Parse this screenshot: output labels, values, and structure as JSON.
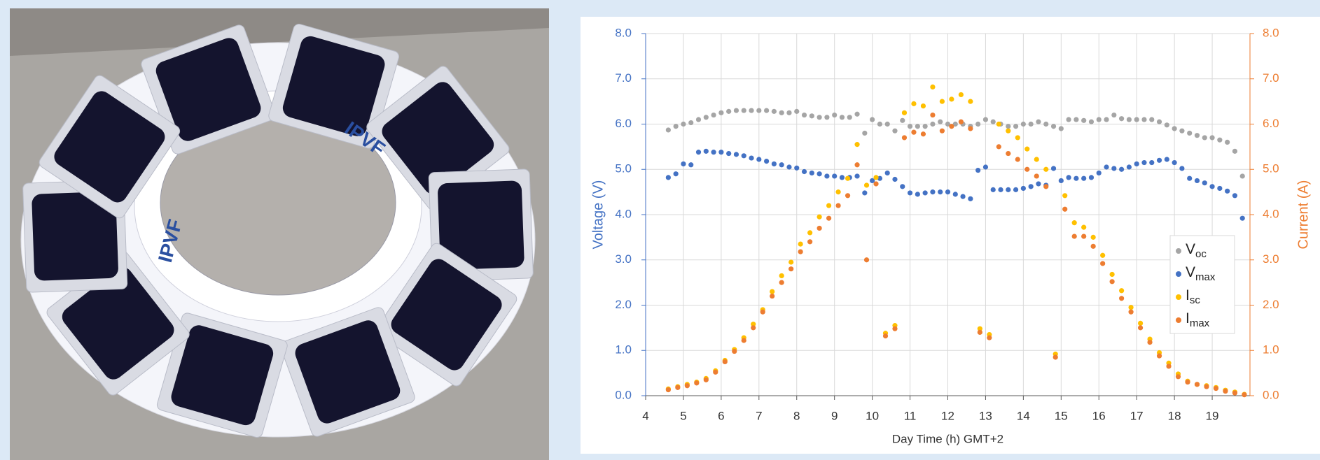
{
  "photo": {
    "labels": [
      "IPVF",
      "IPVF"
    ]
  },
  "chart_data": {
    "type": "scatter",
    "x_label": "Day Time (h) GMT+2",
    "y_label": "Voltage (V)",
    "y2_label": "Current (A)",
    "xlim": [
      4,
      20
    ],
    "xticks": [
      4,
      5,
      6,
      7,
      8,
      9,
      10,
      11,
      12,
      13,
      14,
      15,
      16,
      17,
      18,
      19
    ],
    "ylim": [
      0,
      8
    ],
    "yticks": [
      {
        "value": 0,
        "label": "0.0"
      },
      {
        "value": 1,
        "label": "1.0"
      },
      {
        "value": 2,
        "label": "2.0"
      },
      {
        "value": 3,
        "label": "3.0"
      },
      {
        "value": 4,
        "label": "4.0"
      },
      {
        "value": 5,
        "label": "5.0"
      },
      {
        "value": 6,
        "label": "6.0"
      },
      {
        "value": 7,
        "label": "7.0"
      },
      {
        "value": 8,
        "label": "8.0"
      }
    ],
    "y2lim": [
      0,
      8
    ],
    "y2ticks": [
      {
        "value": 0,
        "label": "0.0"
      },
      {
        "value": 1,
        "label": "1.0"
      },
      {
        "value": 2,
        "label": "2.0"
      },
      {
        "value": 3,
        "label": "3.0"
      },
      {
        "value": 4,
        "label": "4.0"
      },
      {
        "value": 5,
        "label": "5.0"
      },
      {
        "value": 6,
        "label": "6.0"
      },
      {
        "value": 7,
        "label": "7.0"
      },
      {
        "value": 8,
        "label": "8.0"
      }
    ],
    "y_color": "#4472c4",
    "y2_color": "#ed7d31",
    "grid": true,
    "legend": "right",
    "series": [
      {
        "name": "Voc",
        "color": "#a5a5a5",
        "x": [
          4.6,
          4.8,
          5.0,
          5.2,
          5.4,
          5.6,
          5.8,
          6.0,
          6.2,
          6.4,
          6.6,
          6.8,
          7.0,
          7.2,
          7.4,
          7.6,
          7.8,
          8.0,
          8.2,
          8.4,
          8.6,
          8.8,
          9.0,
          9.2,
          9.4,
          9.6,
          9.8,
          10.0,
          10.2,
          10.4,
          10.6,
          10.8,
          11.0,
          11.2,
          11.4,
          11.6,
          11.8,
          12.0,
          12.2,
          12.4,
          12.6,
          12.8,
          13.0,
          13.2,
          13.4,
          13.6,
          13.8,
          14.0,
          14.2,
          14.4,
          14.6,
          14.8,
          15.0,
          15.2,
          15.4,
          15.6,
          15.8,
          16.0,
          16.2,
          16.4,
          16.6,
          16.8,
          17.0,
          17.2,
          17.4,
          17.6,
          17.8,
          18.0,
          18.2,
          18.4,
          18.6,
          18.8,
          19.0,
          19.2,
          19.4,
          19.6,
          19.8
        ],
        "values": [
          5.87,
          5.95,
          6.0,
          6.03,
          6.1,
          6.15,
          6.2,
          6.25,
          6.28,
          6.3,
          6.3,
          6.3,
          6.3,
          6.3,
          6.28,
          6.25,
          6.25,
          6.28,
          6.2,
          6.18,
          6.15,
          6.15,
          6.2,
          6.15,
          6.15,
          6.22,
          5.8,
          6.1,
          6.0,
          6.0,
          5.85,
          6.08,
          5.95,
          5.95,
          5.95,
          6.0,
          6.05,
          6.0,
          6.0,
          6.0,
          5.95,
          6.0,
          6.1,
          6.05,
          6.0,
          5.95,
          5.95,
          6.0,
          6.0,
          6.05,
          6.0,
          5.95,
          5.9,
          6.1,
          6.1,
          6.08,
          6.05,
          6.1,
          6.1,
          6.2,
          6.12,
          6.1,
          6.1,
          6.1,
          6.1,
          6.05,
          5.98,
          5.9,
          5.85,
          5.8,
          5.75,
          5.7,
          5.7,
          5.65,
          5.6,
          5.4,
          4.85
        ]
      },
      {
        "name": "Vmax",
        "color": "#4472c4",
        "x": [
          4.6,
          4.8,
          5.0,
          5.2,
          5.4,
          5.6,
          5.8,
          6.0,
          6.2,
          6.4,
          6.6,
          6.8,
          7.0,
          7.2,
          7.4,
          7.6,
          7.8,
          8.0,
          8.2,
          8.4,
          8.6,
          8.8,
          9.0,
          9.2,
          9.4,
          9.6,
          9.8,
          10.0,
          10.2,
          10.4,
          10.6,
          10.8,
          11.0,
          11.2,
          11.4,
          11.6,
          11.8,
          12.0,
          12.2,
          12.4,
          12.6,
          12.8,
          13.0,
          13.2,
          13.4,
          13.6,
          13.8,
          14.0,
          14.2,
          14.4,
          14.6,
          14.8,
          15.0,
          15.2,
          15.4,
          15.6,
          15.8,
          16.0,
          16.2,
          16.4,
          16.6,
          16.8,
          17.0,
          17.2,
          17.4,
          17.6,
          17.8,
          18.0,
          18.2,
          18.4,
          18.6,
          18.8,
          19.0,
          19.2,
          19.4,
          19.6,
          19.8
        ],
        "values": [
          4.82,
          4.9,
          5.12,
          5.1,
          5.38,
          5.4,
          5.38,
          5.38,
          5.35,
          5.33,
          5.3,
          5.25,
          5.22,
          5.18,
          5.12,
          5.1,
          5.05,
          5.03,
          4.95,
          4.92,
          4.9,
          4.85,
          4.85,
          4.82,
          4.82,
          4.85,
          4.48,
          4.75,
          4.8,
          4.92,
          4.78,
          4.62,
          4.48,
          4.45,
          4.48,
          4.5,
          4.5,
          4.5,
          4.45,
          4.4,
          4.35,
          4.98,
          5.05,
          4.55,
          4.55,
          4.55,
          4.55,
          4.58,
          4.62,
          4.68,
          4.65,
          5.02,
          4.75,
          4.82,
          4.8,
          4.8,
          4.82,
          4.92,
          5.05,
          5.02,
          5.0,
          5.05,
          5.12,
          5.15,
          5.15,
          5.2,
          5.22,
          5.15,
          5.02,
          4.8,
          4.75,
          4.7,
          4.62,
          4.58,
          4.52,
          4.42,
          3.92
        ]
      },
      {
        "name": "Isc",
        "color": "#ffc000",
        "axis": "y2",
        "x": [
          4.6,
          4.85,
          5.1,
          5.35,
          5.6,
          5.85,
          6.1,
          6.35,
          6.6,
          6.85,
          7.1,
          7.35,
          7.6,
          7.85,
          8.1,
          8.35,
          8.6,
          8.85,
          9.1,
          9.35,
          9.6,
          9.85,
          10.1,
          10.35,
          10.6,
          10.85,
          11.1,
          11.35,
          11.6,
          11.85,
          12.1,
          12.35,
          12.6,
          12.85,
          13.1,
          13.35,
          13.6,
          13.85,
          14.1,
          14.35,
          14.6,
          14.85,
          15.1,
          15.35,
          15.6,
          15.85,
          16.1,
          16.35,
          16.6,
          16.85,
          17.1,
          17.35,
          17.6,
          17.85,
          18.1,
          18.35,
          18.6,
          18.85,
          19.1,
          19.35,
          19.6,
          19.85
        ],
        "values": [
          0.15,
          0.2,
          0.25,
          0.3,
          0.38,
          0.55,
          0.78,
          1.02,
          1.28,
          1.58,
          1.9,
          2.3,
          2.65,
          2.95,
          3.35,
          3.6,
          3.95,
          4.2,
          4.5,
          4.8,
          5.55,
          4.65,
          4.82,
          1.38,
          1.55,
          6.25,
          6.45,
          6.4,
          6.82,
          6.5,
          6.55,
          6.65,
          6.5,
          1.48,
          1.35,
          6.0,
          5.85,
          5.7,
          5.45,
          5.22,
          5.0,
          0.92,
          4.42,
          3.82,
          3.72,
          3.5,
          3.1,
          2.68,
          2.32,
          1.95,
          1.6,
          1.25,
          0.95,
          0.72,
          0.48,
          0.32,
          0.25,
          0.22,
          0.18,
          0.12,
          0.08,
          0.03
        ]
      },
      {
        "name": "Imax",
        "color": "#ed7d31",
        "axis": "y2",
        "x": [
          4.6,
          4.85,
          5.1,
          5.35,
          5.6,
          5.85,
          6.1,
          6.35,
          6.6,
          6.85,
          7.1,
          7.35,
          7.6,
          7.85,
          8.1,
          8.35,
          8.6,
          8.85,
          9.1,
          9.35,
          9.6,
          9.85,
          10.1,
          10.35,
          10.6,
          10.85,
          11.1,
          11.35,
          11.6,
          11.85,
          12.1,
          12.35,
          12.6,
          12.85,
          13.1,
          13.35,
          13.6,
          13.85,
          14.1,
          14.35,
          14.6,
          14.85,
          15.1,
          15.35,
          15.6,
          15.85,
          16.1,
          16.35,
          16.6,
          16.85,
          17.1,
          17.35,
          17.6,
          17.85,
          18.1,
          18.35,
          18.6,
          18.85,
          19.1,
          19.35,
          19.6,
          19.85
        ],
        "values": [
          0.13,
          0.18,
          0.22,
          0.28,
          0.35,
          0.52,
          0.75,
          0.98,
          1.22,
          1.5,
          1.85,
          2.2,
          2.5,
          2.8,
          3.18,
          3.4,
          3.7,
          3.92,
          4.2,
          4.42,
          5.1,
          3.0,
          4.68,
          1.32,
          1.48,
          5.7,
          5.82,
          5.78,
          6.2,
          5.85,
          5.95,
          6.05,
          5.9,
          1.4,
          1.28,
          5.5,
          5.35,
          5.22,
          5.0,
          4.85,
          4.62,
          0.85,
          4.12,
          3.52,
          3.52,
          3.3,
          2.92,
          2.52,
          2.15,
          1.85,
          1.5,
          1.18,
          0.88,
          0.65,
          0.42,
          0.3,
          0.25,
          0.2,
          0.16,
          0.1,
          0.06,
          0.02
        ]
      }
    ]
  }
}
